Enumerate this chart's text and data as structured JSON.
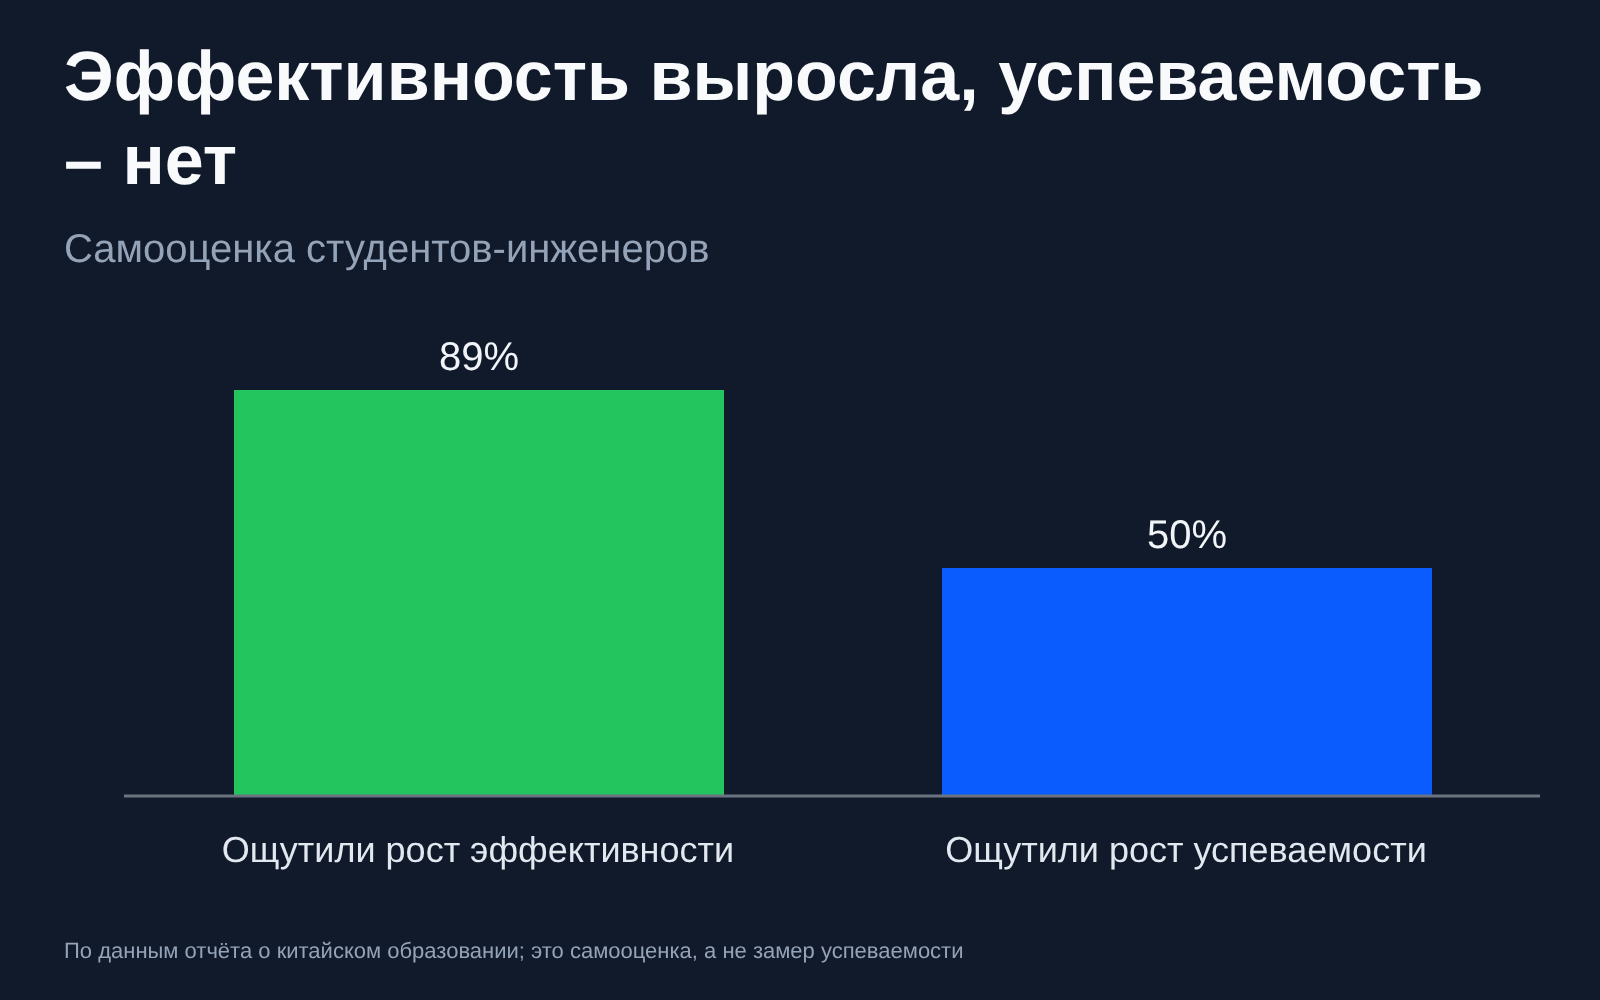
{
  "chart_data": {
    "type": "bar",
    "title": "Эффективность выросла, успеваемость – нет",
    "subtitle": "Самооценка студентов-инженеров",
    "categories": [
      "Ощутили рост эффективности",
      "Ощутили рост успеваемости"
    ],
    "values": [
      89,
      50
    ],
    "colors": [
      "#22c55e",
      "#0a5cff"
    ],
    "value_labels": [
      "89%",
      "50%"
    ],
    "grid": false,
    "annotations": [
      "По данным отчёта о китайском образовании; это самооценка, а не замер успеваемости"
    ]
  }
}
